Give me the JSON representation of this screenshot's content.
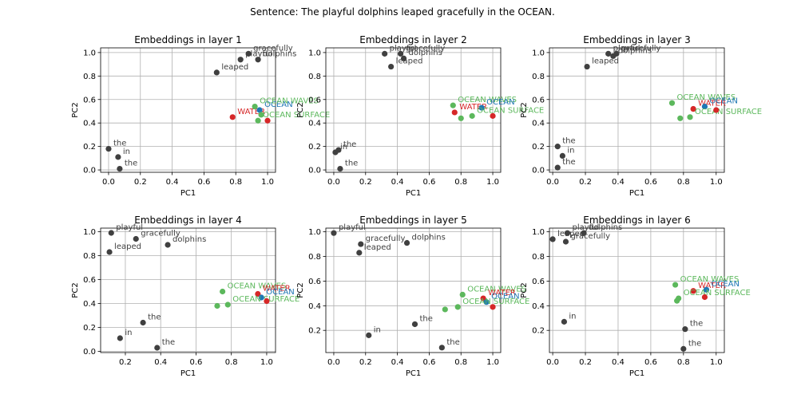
{
  "suptitle": "Sentence: The playful dolphins leaped gracefully in the OCEAN.",
  "colors": {
    "word": "#404040",
    "water": "#d62728",
    "ocean": "#1f77b4",
    "ocean_phrase": "#5cb85c"
  },
  "chart_data": [
    {
      "type": "scatter",
      "title": "Embeddings in layer 1",
      "xlabel": "PC1",
      "ylabel": "PC2",
      "xlim": [
        -0.05,
        1.05
      ],
      "ylim": [
        -0.02,
        1.04
      ],
      "grid": true,
      "xticks": [
        "0.0",
        "0.2",
        "0.4",
        "0.6",
        "0.8",
        "1.0"
      ],
      "yticks": [
        "0.0",
        "0.2",
        "0.4",
        "0.6",
        "0.8",
        "1.0"
      ],
      "points": [
        {
          "label": "the",
          "x": 0.0,
          "y": 0.18,
          "group": "word"
        },
        {
          "label": "playful",
          "x": 0.83,
          "y": 0.94,
          "group": "word"
        },
        {
          "label": "dolphins",
          "x": 0.94,
          "y": 0.94,
          "group": "word"
        },
        {
          "label": "leaped",
          "x": 0.68,
          "y": 0.83,
          "group": "word"
        },
        {
          "label": "gracefully",
          "x": 0.88,
          "y": 0.99,
          "group": "word"
        },
        {
          "label": "in",
          "x": 0.06,
          "y": 0.11,
          "group": "word"
        },
        {
          "label": "the",
          "x": 0.07,
          "y": 0.01,
          "group": "word"
        },
        {
          "label": "WATER",
          "x": 0.78,
          "y": 0.45,
          "group": "water"
        },
        {
          "label": "OCEAN",
          "x": 0.95,
          "y": 0.51,
          "group": "ocean"
        },
        {
          "label": "OCEAN WAVES",
          "x": 0.92,
          "y": 0.54,
          "group": "ocean_phrase"
        },
        {
          "label": "OCEAN SURFACE",
          "x": 0.94,
          "y": 0.42,
          "group": "ocean_phrase"
        },
        {
          "label": "",
          "x": 0.96,
          "y": 0.47,
          "group": "ocean_phrase"
        },
        {
          "label": "",
          "x": 1.0,
          "y": 0.42,
          "group": "water"
        }
      ]
    },
    {
      "type": "scatter",
      "title": "Embeddings in layer 2",
      "xlabel": "PC1",
      "ylabel": "PC2",
      "xlim": [
        -0.05,
        1.05
      ],
      "ylim": [
        -0.02,
        1.04
      ],
      "grid": true,
      "xticks": [
        "0.0",
        "0.2",
        "0.4",
        "0.6",
        "0.8",
        "1.0"
      ],
      "yticks": [
        "0.0",
        "0.2",
        "0.4",
        "0.6",
        "0.8",
        "1.0"
      ],
      "points": [
        {
          "label": "in",
          "x": 0.01,
          "y": 0.15,
          "group": "word"
        },
        {
          "label": "the",
          "x": 0.03,
          "y": 0.17,
          "group": "word"
        },
        {
          "label": "the",
          "x": 0.04,
          "y": 0.01,
          "group": "word"
        },
        {
          "label": "playful",
          "x": 0.32,
          "y": 0.99,
          "group": "word"
        },
        {
          "label": "gracefully",
          "x": 0.42,
          "y": 0.99,
          "group": "word"
        },
        {
          "label": "leaped",
          "x": 0.36,
          "y": 0.88,
          "group": "word"
        },
        {
          "label": "dolphins",
          "x": 0.44,
          "y": 0.95,
          "group": "word"
        },
        {
          "label": "OCEAN WAVES",
          "x": 0.75,
          "y": 0.55,
          "group": "ocean_phrase"
        },
        {
          "label": "WATER",
          "x": 0.76,
          "y": 0.49,
          "group": "water"
        },
        {
          "label": "OCEAN",
          "x": 0.93,
          "y": 0.53,
          "group": "ocean"
        },
        {
          "label": "OCEAN SURFACE",
          "x": 0.87,
          "y": 0.46,
          "group": "ocean_phrase"
        },
        {
          "label": "",
          "x": 0.8,
          "y": 0.44,
          "group": "ocean_phrase"
        },
        {
          "label": "",
          "x": 1.0,
          "y": 0.46,
          "group": "water"
        }
      ]
    },
    {
      "type": "scatter",
      "title": "Embeddings in layer 3",
      "xlabel": "PC1",
      "ylabel": "PC2",
      "xlim": [
        -0.02,
        1.05
      ],
      "ylim": [
        -0.02,
        1.04
      ],
      "grid": true,
      "xticks": [
        "0.0",
        "0.2",
        "0.4",
        "0.6",
        "0.8",
        "1.0"
      ],
      "yticks": [
        "0.0",
        "0.2",
        "0.4",
        "0.6",
        "0.8",
        "1.0"
      ],
      "points": [
        {
          "label": "the",
          "x": 0.03,
          "y": 0.2,
          "group": "word"
        },
        {
          "label": "in",
          "x": 0.06,
          "y": 0.12,
          "group": "word"
        },
        {
          "label": "the",
          "x": 0.03,
          "y": 0.02,
          "group": "word"
        },
        {
          "label": "leaped",
          "x": 0.21,
          "y": 0.88,
          "group": "word"
        },
        {
          "label": "playful",
          "x": 0.34,
          "y": 0.99,
          "group": "word"
        },
        {
          "label": "gracefully",
          "x": 0.39,
          "y": 0.99,
          "group": "word"
        },
        {
          "label": "dolphins",
          "x": 0.37,
          "y": 0.97,
          "group": "word"
        },
        {
          "label": "OCEAN WAVES",
          "x": 0.73,
          "y": 0.57,
          "group": "ocean_phrase"
        },
        {
          "label": "WATER",
          "x": 0.86,
          "y": 0.52,
          "group": "water"
        },
        {
          "label": "OCEAN",
          "x": 0.93,
          "y": 0.54,
          "group": "ocean"
        },
        {
          "label": "OCEAN SURFACE",
          "x": 0.84,
          "y": 0.45,
          "group": "ocean_phrase"
        },
        {
          "label": "",
          "x": 0.78,
          "y": 0.44,
          "group": "ocean_phrase"
        },
        {
          "label": "",
          "x": 1.0,
          "y": 0.51,
          "group": "water"
        }
      ]
    },
    {
      "type": "scatter",
      "title": "Embeddings in layer 4",
      "xlabel": "PC1",
      "ylabel": "PC2",
      "xlim": [
        0.06,
        1.05
      ],
      "ylim": [
        -0.01,
        1.03
      ],
      "grid": true,
      "xticks": [
        "0.2",
        "0.4",
        "0.6",
        "0.8",
        "1.0"
      ],
      "yticks": [
        "0.0",
        "0.2",
        "0.4",
        "0.6",
        "0.8",
        "1.0"
      ],
      "points": [
        {
          "label": "playful",
          "x": 0.12,
          "y": 0.99,
          "group": "word"
        },
        {
          "label": "leaped",
          "x": 0.11,
          "y": 0.83,
          "group": "word"
        },
        {
          "label": "gracefully",
          "x": 0.26,
          "y": 0.94,
          "group": "word"
        },
        {
          "label": "dolphins",
          "x": 0.44,
          "y": 0.89,
          "group": "word"
        },
        {
          "label": "the",
          "x": 0.3,
          "y": 0.24,
          "group": "word"
        },
        {
          "label": "in",
          "x": 0.17,
          "y": 0.11,
          "group": "word"
        },
        {
          "label": "the",
          "x": 0.38,
          "y": 0.03,
          "group": "word"
        },
        {
          "label": "OCEAN WAVES",
          "x": 0.75,
          "y": 0.5,
          "group": "ocean_phrase"
        },
        {
          "label": "WATER",
          "x": 0.95,
          "y": 0.48,
          "group": "water"
        },
        {
          "label": "OCEAN",
          "x": 0.97,
          "y": 0.45,
          "group": "ocean"
        },
        {
          "label": "OCEAN SURFACE",
          "x": 0.78,
          "y": 0.39,
          "group": "ocean_phrase"
        },
        {
          "label": "",
          "x": 0.72,
          "y": 0.38,
          "group": "ocean_phrase"
        },
        {
          "label": "",
          "x": 1.0,
          "y": 0.42,
          "group": "water"
        }
      ]
    },
    {
      "type": "scatter",
      "title": "Embeddings in layer 5",
      "xlabel": "PC1",
      "ylabel": "PC2",
      "xlim": [
        -0.05,
        1.05
      ],
      "ylim": [
        0.02,
        1.03
      ],
      "grid": true,
      "xticks": [
        "0.0",
        "0.2",
        "0.4",
        "0.6",
        "0.8",
        "1.0"
      ],
      "yticks": [
        "0.2",
        "0.4",
        "0.6",
        "0.8",
        "1.0"
      ],
      "points": [
        {
          "label": "playful",
          "x": 0.0,
          "y": 0.99,
          "group": "word"
        },
        {
          "label": "gracefully",
          "x": 0.17,
          "y": 0.9,
          "group": "word"
        },
        {
          "label": "leaped",
          "x": 0.16,
          "y": 0.83,
          "group": "word"
        },
        {
          "label": "dolphins",
          "x": 0.46,
          "y": 0.91,
          "group": "word"
        },
        {
          "label": "the",
          "x": 0.51,
          "y": 0.25,
          "group": "word"
        },
        {
          "label": "in",
          "x": 0.22,
          "y": 0.16,
          "group": "word"
        },
        {
          "label": "the",
          "x": 0.68,
          "y": 0.06,
          "group": "word"
        },
        {
          "label": "OCEAN WAVES",
          "x": 0.81,
          "y": 0.49,
          "group": "ocean_phrase"
        },
        {
          "label": "WATER",
          "x": 0.94,
          "y": 0.46,
          "group": "water"
        },
        {
          "label": "OCEAN",
          "x": 0.96,
          "y": 0.43,
          "group": "ocean"
        },
        {
          "label": "OCEAN SURFACE",
          "x": 0.78,
          "y": 0.39,
          "group": "ocean_phrase"
        },
        {
          "label": "",
          "x": 0.7,
          "y": 0.37,
          "group": "ocean_phrase"
        },
        {
          "label": "",
          "x": 1.0,
          "y": 0.39,
          "group": "water"
        }
      ]
    },
    {
      "type": "scatter",
      "title": "Embeddings in layer 6",
      "xlabel": "PC1",
      "ylabel": "PC2",
      "xlim": [
        -0.02,
        1.05
      ],
      "ylim": [
        0.02,
        1.03
      ],
      "grid": true,
      "xticks": [
        "0.0",
        "0.2",
        "0.4",
        "0.6",
        "0.8",
        "1.0"
      ],
      "yticks": [
        "0.2",
        "0.4",
        "0.6",
        "0.8",
        "1.0"
      ],
      "points": [
        {
          "label": "playful",
          "x": 0.09,
          "y": 0.99,
          "group": "word"
        },
        {
          "label": "dolphins",
          "x": 0.19,
          "y": 0.99,
          "group": "word"
        },
        {
          "label": "gracefully",
          "x": 0.08,
          "y": 0.92,
          "group": "word"
        },
        {
          "label": "leaped",
          "x": 0.0,
          "y": 0.94,
          "group": "word"
        },
        {
          "label": "in",
          "x": 0.07,
          "y": 0.27,
          "group": "word"
        },
        {
          "label": "the",
          "x": 0.81,
          "y": 0.21,
          "group": "word"
        },
        {
          "label": "the",
          "x": 0.8,
          "y": 0.05,
          "group": "word"
        },
        {
          "label": "OCEAN WAVES",
          "x": 0.75,
          "y": 0.57,
          "group": "ocean_phrase"
        },
        {
          "label": "WATER",
          "x": 0.86,
          "y": 0.52,
          "group": "water"
        },
        {
          "label": "OCEAN",
          "x": 0.94,
          "y": 0.53,
          "group": "ocean"
        },
        {
          "label": "OCEAN SURFACE",
          "x": 0.77,
          "y": 0.46,
          "group": "ocean_phrase"
        },
        {
          "label": "",
          "x": 0.76,
          "y": 0.44,
          "group": "ocean_phrase"
        },
        {
          "label": "",
          "x": 0.93,
          "y": 0.47,
          "group": "water"
        }
      ]
    }
  ]
}
